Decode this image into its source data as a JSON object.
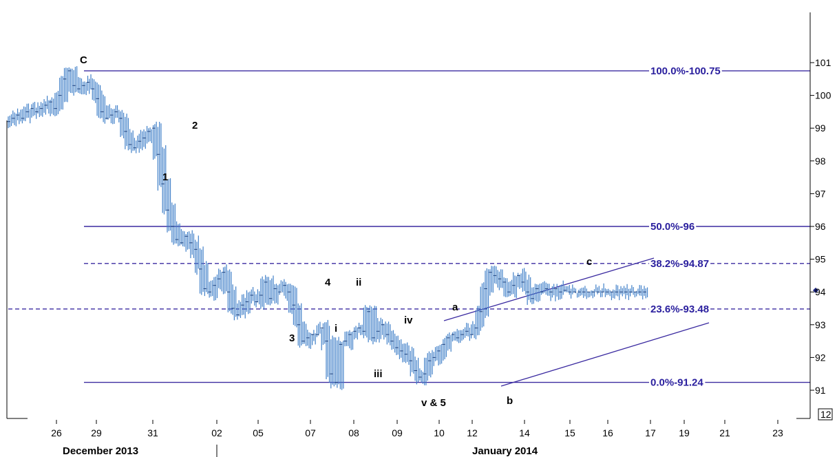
{
  "chart_data": {
    "type": "line",
    "yticks": [
      91,
      92,
      93,
      94,
      95,
      96,
      97,
      98,
      99,
      100,
      101
    ],
    "ylim": [
      90.8,
      102.0
    ],
    "last_value_box": "12",
    "x_ticks": [
      "26",
      "29",
      "31",
      "02",
      "05",
      "07",
      "08",
      "09",
      "10",
      "12",
      "14",
      "15",
      "16",
      "17",
      "19",
      "21",
      "23"
    ],
    "months": [
      {
        "label": "December 2013",
        "anchor_tick": "29"
      },
      {
        "label": "January 2014",
        "anchor_tick": "12"
      }
    ],
    "fib_levels": [
      {
        "label": "100.0%-100.75",
        "value": 100.75,
        "style": "solid"
      },
      {
        "label": "50.0%-96",
        "value": 96,
        "style": "solid"
      },
      {
        "label": "38.2%-94.87",
        "value": 94.87,
        "style": "dashed"
      },
      {
        "label": "23.6%-93.48",
        "value": 93.48,
        "style": "dashed"
      },
      {
        "label": "0.0%-91.24",
        "value": 91.24,
        "style": "solid"
      }
    ],
    "wave_labels": [
      "C",
      "1",
      "2",
      "3",
      "4",
      "i",
      "ii",
      "iii",
      "iv",
      "v & 5",
      "a",
      "b",
      "c"
    ],
    "series": [
      {
        "x": [
          0,
          1,
          2,
          3,
          4,
          5,
          6,
          7,
          8,
          9,
          10,
          11,
          12,
          13,
          14,
          15,
          16,
          17,
          18,
          19,
          20,
          21,
          22,
          23,
          24,
          25,
          26,
          27,
          28,
          29,
          30,
          31,
          32,
          33,
          34,
          35,
          36,
          37,
          38,
          39,
          40,
          41,
          42,
          43,
          44,
          45,
          46,
          47,
          48,
          49,
          50,
          51,
          52,
          53,
          54,
          55,
          56,
          57,
          58,
          59,
          60,
          61,
          62,
          63,
          64,
          65,
          66,
          67,
          68,
          69,
          70,
          71,
          72,
          73,
          74,
          75,
          76,
          77,
          78,
          79,
          80,
          81,
          82,
          83,
          84,
          85,
          86,
          87,
          88,
          89,
          90,
          91,
          92,
          93,
          94,
          95,
          96,
          97,
          98,
          99,
          100,
          101,
          102,
          103,
          104,
          105,
          106,
          107,
          108,
          109,
          110,
          111,
          112,
          113,
          114,
          115,
          116,
          117,
          118,
          119,
          120,
          121,
          122,
          123,
          124,
          125,
          126,
          127,
          128,
          129,
          130,
          131,
          132,
          133,
          134,
          135,
          136
        ],
        "values": [
          99.2,
          99.3,
          99.4,
          99.3,
          99.5,
          99.6,
          99.5,
          99.6,
          99.7,
          99.8,
          99.6,
          100.0,
          100.5,
          100.75,
          100.3,
          100.2,
          100.3,
          100.4,
          100.2,
          99.9,
          99.5,
          99.3,
          99.4,
          99.5,
          99.3,
          98.9,
          98.5,
          98.4,
          98.6,
          98.7,
          98.9,
          99.0,
          98.2,
          97.3,
          96.5,
          96.0,
          95.6,
          95.5,
          95.7,
          95.5,
          95.3,
          94.7,
          94.1,
          94.0,
          94.2,
          94.4,
          94.6,
          94.0,
          93.5,
          93.3,
          93.6,
          93.7,
          93.9,
          93.7,
          93.9,
          94.3,
          93.8,
          94.1,
          94.0,
          94.2,
          94.0,
          93.6,
          93.0,
          92.5,
          92.6,
          92.7,
          92.7,
          92.9,
          92.5,
          91.5,
          91.24,
          92.4,
          92.5,
          92.7,
          92.8,
          92.9,
          92.8,
          93.4,
          92.6,
          92.8,
          93.0,
          92.7,
          92.5,
          92.3,
          92.2,
          92.1,
          91.9,
          91.6,
          91.4,
          91.5,
          91.9,
          92.0,
          92.2,
          92.4,
          92.6,
          92.7,
          92.6,
          92.7,
          92.8,
          92.7,
          92.9,
          93.4,
          94.1,
          94.6,
          94.5,
          94.4,
          94.3,
          94.0,
          94.2,
          94.5,
          94.3,
          94.0,
          93.8,
          94.1,
          94.0,
          94.1,
          94.0,
          94.1,
          94.0,
          94.05,
          94.0,
          94.0,
          94.0,
          94.0,
          94.0,
          94.0,
          94.0,
          94.0,
          94.0,
          94.0,
          94.0,
          94.0,
          94.0,
          94.0,
          94.0,
          94.0,
          94.0
        ]
      }
    ]
  }
}
